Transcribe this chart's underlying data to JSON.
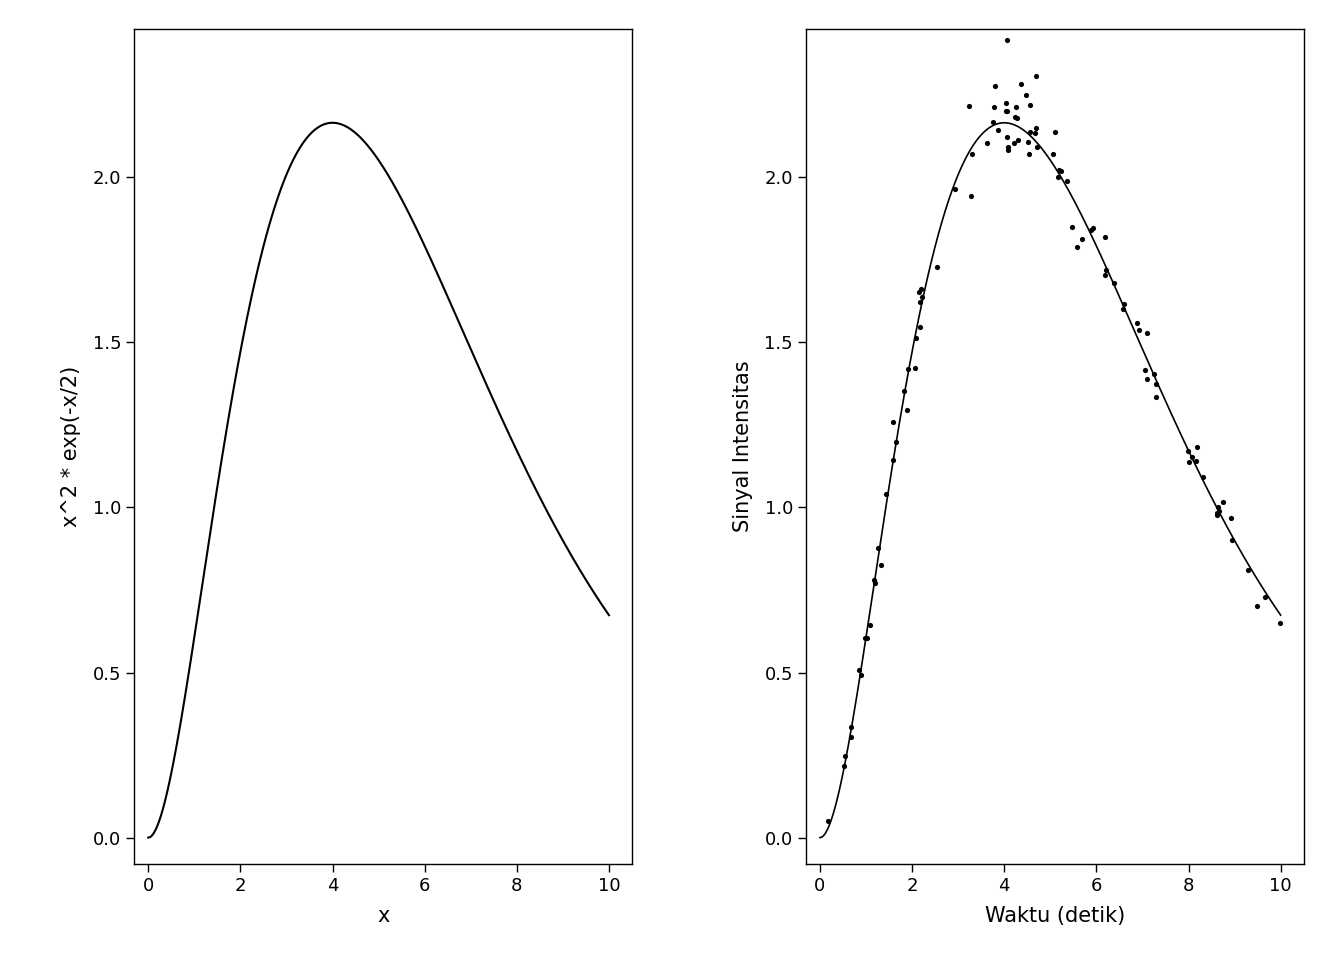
{
  "left_plot": {
    "xlabel": "x",
    "ylabel": "x^2 * exp(-x/2)",
    "xlim": [
      -0.3,
      10.5
    ],
    "ylim": [
      -0.08,
      2.45
    ],
    "axis_xlim": [
      0,
      10
    ],
    "axis_ylim": [
      0.0,
      2.0
    ],
    "xticks": [
      0,
      2,
      4,
      6,
      8,
      10
    ],
    "yticks": [
      0.0,
      0.5,
      1.0,
      1.5,
      2.0
    ],
    "line_color": "#000000",
    "line_width": 1.5
  },
  "right_plot": {
    "xlabel": "Waktu (detik)",
    "ylabel": "Sinyal Intensitas",
    "xlim": [
      -0.3,
      10.5
    ],
    "ylim": [
      -0.08,
      2.45
    ],
    "axis_xlim": [
      0,
      10
    ],
    "axis_ylim": [
      0.0,
      2.0
    ],
    "xticks": [
      0,
      2,
      4,
      6,
      8,
      10
    ],
    "yticks": [
      0.0,
      0.5,
      1.0,
      1.5,
      2.0
    ],
    "scatter_color": "#000000",
    "scatter_size": 14,
    "line_color": "#000000",
    "line_width": 1.2,
    "noise_seed": 123,
    "n_points": 100
  },
  "background_color": "#ffffff",
  "font_size_label": 15,
  "font_size_tick": 13,
  "figure_facecolor": "#ffffff"
}
